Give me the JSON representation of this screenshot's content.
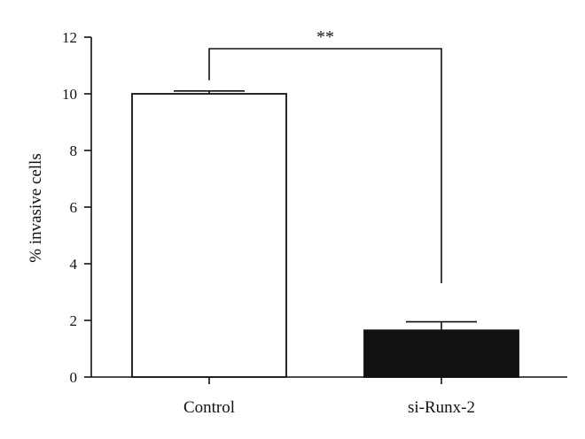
{
  "chart_data": {
    "type": "bar",
    "title": "",
    "xlabel": "",
    "ylabel": "% invasive cells",
    "ylim": [
      0,
      12
    ],
    "yticks": [
      0,
      2,
      4,
      6,
      8,
      10,
      12
    ],
    "categories": [
      "Control",
      "si-Runx-2"
    ],
    "values": [
      10.0,
      1.65
    ],
    "errors": [
      0.1,
      0.3
    ],
    "bar_colors": [
      "#ffffff",
      "#111111"
    ],
    "bar_edge_color": "#111111",
    "grid": false,
    "legend": "none",
    "significance": {
      "between": [
        "Control",
        "si-Runx-2"
      ],
      "label": "**"
    }
  }
}
